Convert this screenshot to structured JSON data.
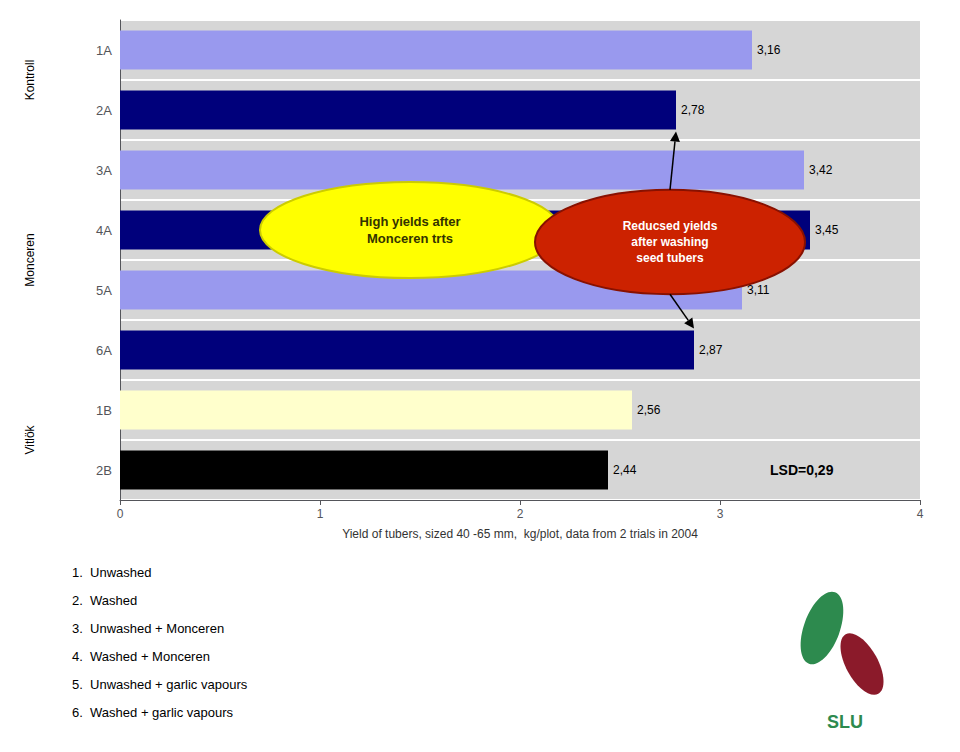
{
  "chart_data": {
    "type": "bar",
    "orientation": "horizontal",
    "categories": [
      "1A",
      "2A",
      "3A",
      "4A",
      "5A",
      "6A",
      "1B",
      "2B"
    ],
    "values": [
      3.16,
      2.78,
      3.42,
      3.45,
      3.11,
      2.87,
      2.56,
      2.44
    ],
    "value_labels": [
      "3,16",
      "2,78",
      "3,42",
      "3,45",
      "3,11",
      "2,87",
      "2,56",
      "2,44"
    ],
    "data_labels": true,
    "colors": [
      "#9999ee",
      "#00007B",
      "#9999ee",
      "#00007B",
      "#9999ee",
      "#00007B",
      "#ffffcc",
      "#000000"
    ],
    "xlabel": "Yield of tubers, sized 40 -65 mm,  kg/plot, data from 2 trials in 2004",
    "xlim": [
      0,
      4
    ],
    "xticks": [
      0,
      1,
      2,
      3,
      4
    ],
    "grid": false,
    "annotations": [
      {
        "text": "LSD=0,29",
        "category": "2B"
      },
      {
        "text": "High yields after\nMonceren trts",
        "color": "#FFFF00",
        "category": "4A"
      },
      {
        "text": "Reducsed yields\nafter washing\nseed tubers",
        "color": "#CC2200",
        "category": "4A",
        "arrows_to": [
          "2A",
          "6A"
        ]
      }
    ],
    "group_labels": [
      {
        "text": "Kontroll",
        "categories": [
          "1A",
          "2A"
        ]
      },
      {
        "text": "Monceren",
        "categories": [
          "3A",
          "4A",
          "5A",
          "6A"
        ]
      },
      {
        "text": "Vitlök",
        "categories": [
          "1B",
          "2B"
        ]
      }
    ],
    "footnotes": [
      "1.  Unwashed",
      "2.  Washed",
      "3.  Unwashed + Monceren",
      "4.  Washed + Monceren",
      "5.  Unwashed + garlic vapours",
      "6.  Washed + garlic vapours"
    ],
    "logo_text": "SLU"
  }
}
